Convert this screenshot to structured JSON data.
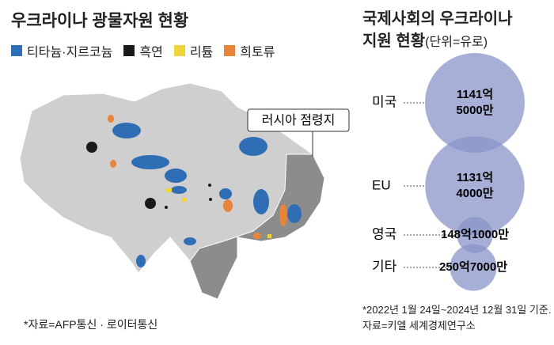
{
  "map": {
    "title": "우크라이나 광물자원 현황",
    "legend": [
      {
        "label": "티타늄·지르코늄",
        "color": "#2f6db5"
      },
      {
        "label": "흑연",
        "color": "#1a1a1a"
      },
      {
        "label": "리튬",
        "color": "#eed53c"
      },
      {
        "label": "희토류",
        "color": "#e8853a"
      }
    ],
    "occupied_label": "러시아 점령지",
    "source": "*자료=AFP통신 · 로이터통신"
  },
  "chart_data": {
    "type": "bubble",
    "title": "국제사회의 우크라이나",
    "title_line2": "지원 현황",
    "unit": "(단위=유로)",
    "categories": [
      "미국",
      "EU",
      "영국",
      "기타"
    ],
    "values": [
      114150000000,
      113140000000,
      14810000000,
      25070000000
    ],
    "value_labels": [
      "1141억 5000만",
      "1131억 4000만",
      "148억1000만",
      "250억7000만"
    ],
    "color": "#8a94c8",
    "note": [
      "*2022년 1월 24일~2024년 12월 31일 기준.",
      "자료=키엘 세계경제연구소"
    ]
  }
}
